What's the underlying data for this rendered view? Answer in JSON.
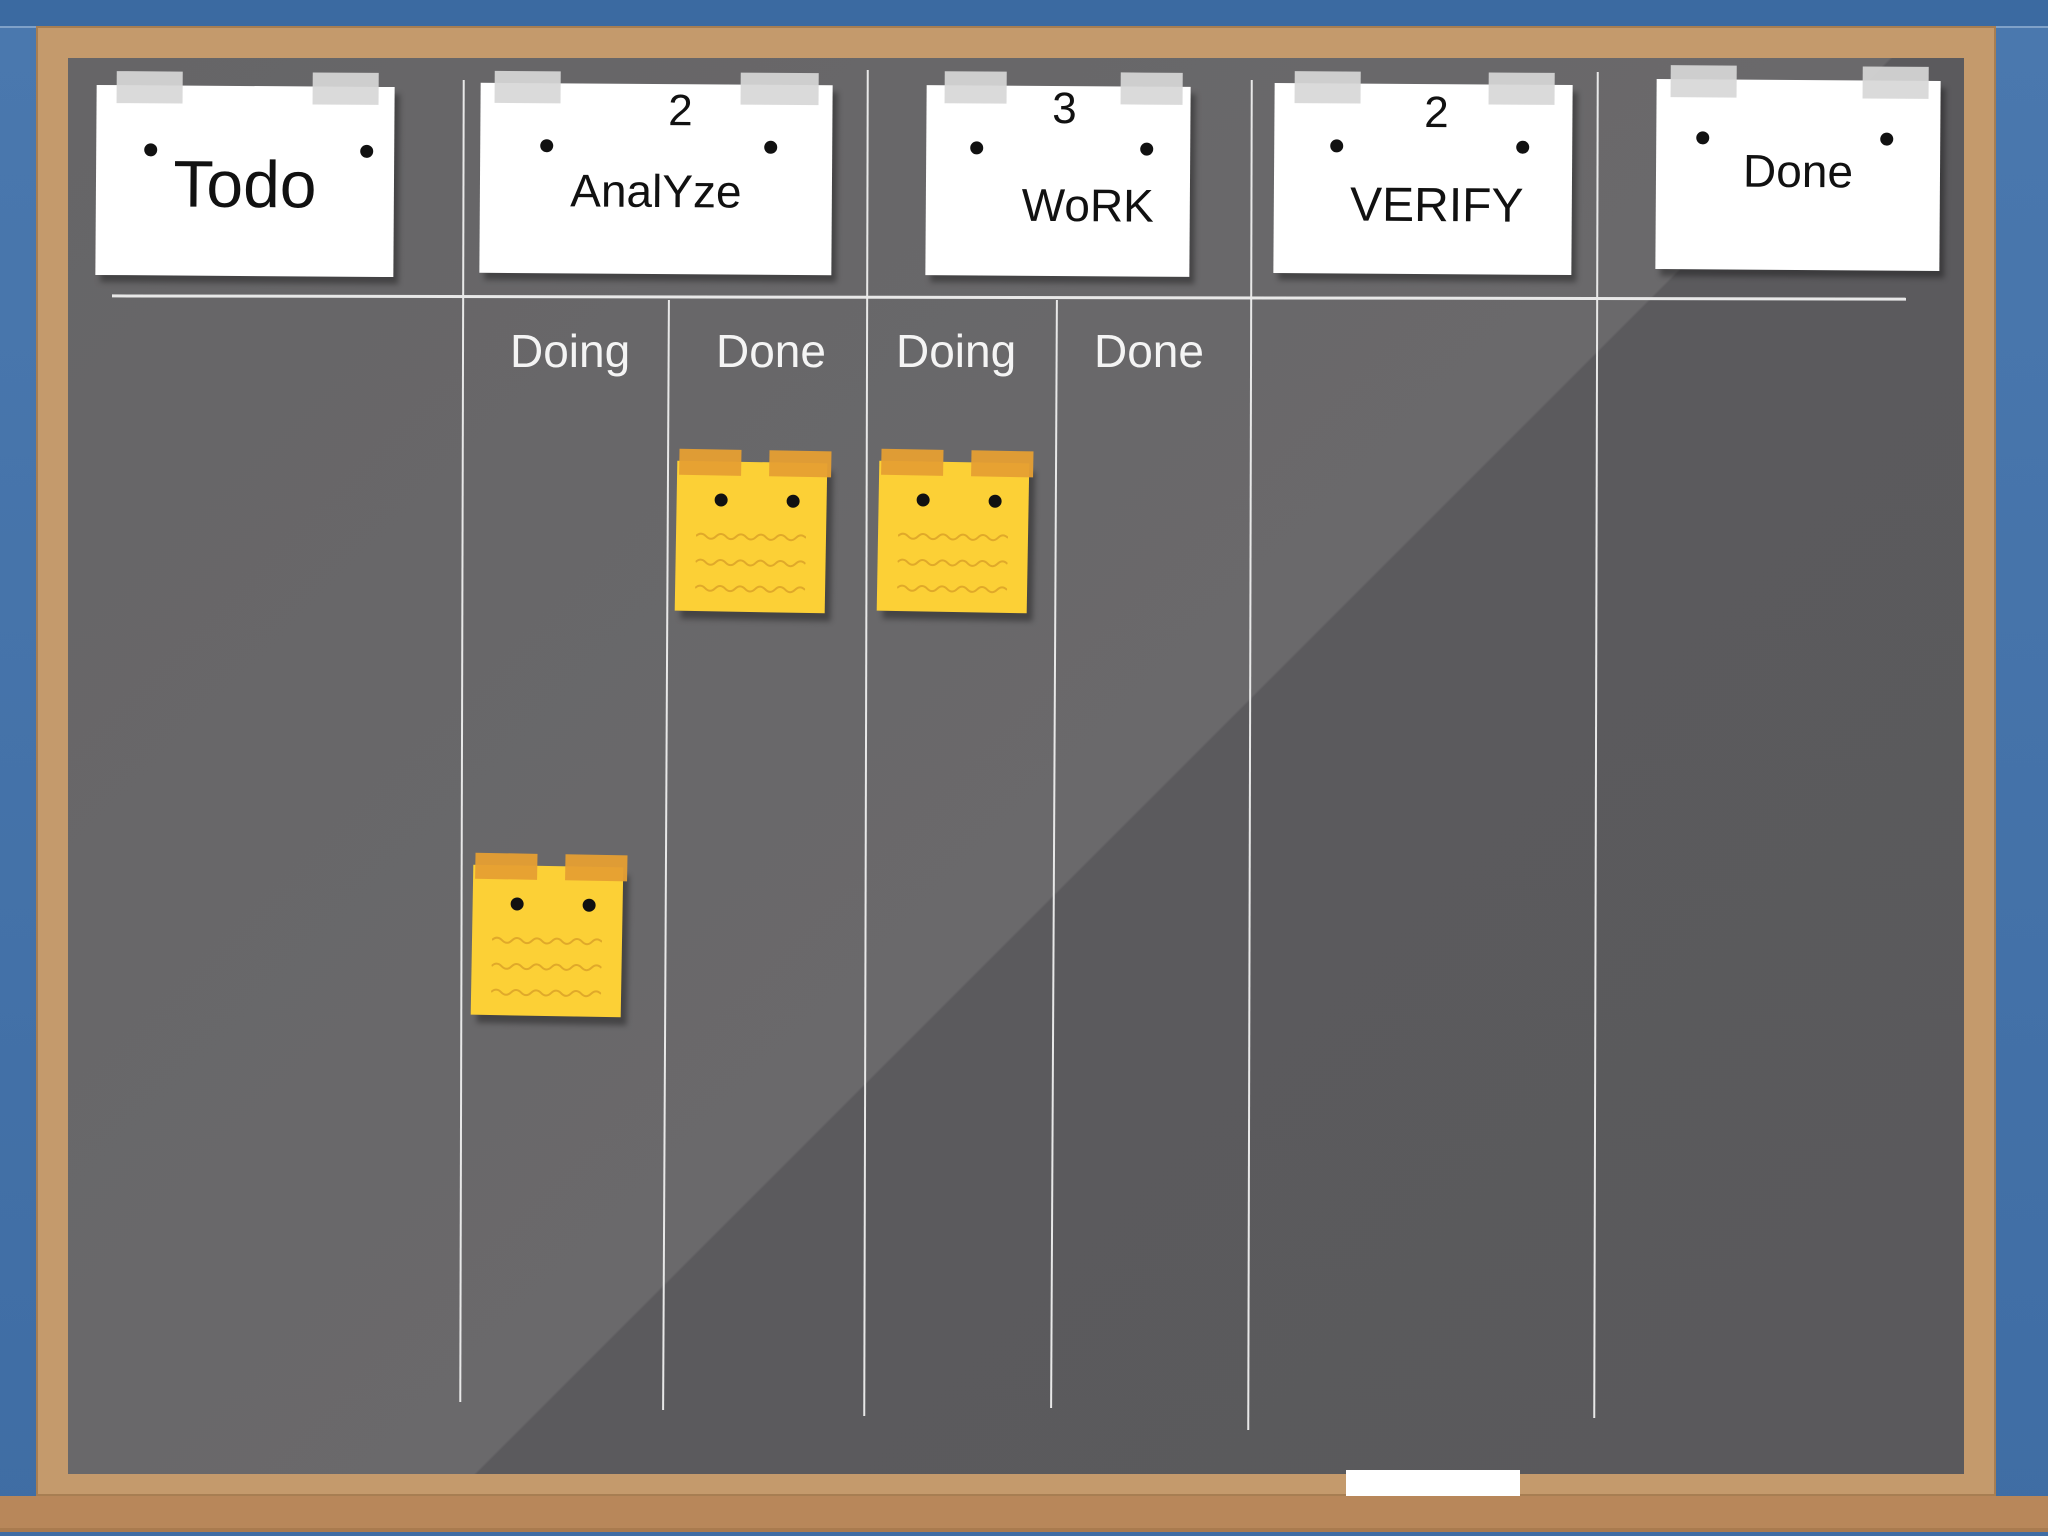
{
  "board": {
    "columns": [
      {
        "title": "Todo",
        "wip": ""
      },
      {
        "title": "AnalYze",
        "wip": "2"
      },
      {
        "title": "WoRK",
        "wip": "3"
      },
      {
        "title": "VERIFY",
        "wip": "2"
      },
      {
        "title": "Done",
        "wip": ""
      }
    ],
    "subcolumns": [
      "Doing",
      "Done",
      "Doing",
      "Done"
    ]
  },
  "colors": {
    "chalkboard": "#5e5d60",
    "frame": "#c49a6c",
    "wall": "#4a78ae",
    "sticky_note": "#fcd036",
    "sticky_tape": "#e69f33"
  },
  "sticky_notes": [
    {
      "column": "AnalYze",
      "subcolumn": "Done"
    },
    {
      "column": "WoRK",
      "subcolumn": "Doing"
    },
    {
      "column": "AnalYze",
      "subcolumn": "Doing"
    }
  ]
}
